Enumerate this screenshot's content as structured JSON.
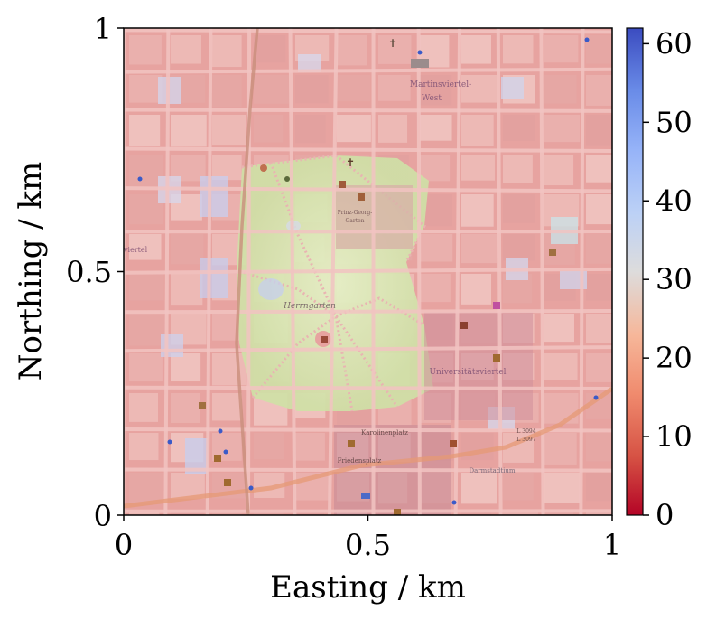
{
  "map": {
    "labels": {
      "district_north": "Martinsviertel-West",
      "district_north_line1": "Martinsviertel-",
      "district_north_line2": "West",
      "park": "Herrngarten",
      "garden_line1": "Prinz-Georg-",
      "garden_line2": "Garten",
      "district_university": "Universitätsviertel",
      "square_karolinen": "Karolinenplatz",
      "square_friedens": "Friedensplatz",
      "road_ref_1": "L 3094",
      "road_ref_2": "L 3097",
      "district_west": "viertel",
      "darmstadtium": "Darmstadtium"
    }
  },
  "axes": {
    "xlabel": "Easting / km",
    "ylabel": "Northing / km",
    "xticks": [
      "0",
      "0.5",
      "1"
    ],
    "yticks": [
      "0",
      "0.5",
      "1"
    ],
    "xlim": [
      0,
      1
    ],
    "ylim": [
      0,
      1
    ]
  },
  "colorbar": {
    "colormap": "coolwarm_r",
    "range": [
      0,
      62
    ],
    "ticks": [
      "0",
      "10",
      "20",
      "30",
      "40",
      "50",
      "60"
    ],
    "tick_values": [
      0,
      10,
      20,
      30,
      40,
      50,
      60
    ]
  },
  "colors": {
    "low": "#b40426",
    "mid": "#dddcdc",
    "high": "#3b4cc0",
    "street": "#f3b8b6",
    "park": "#c9d9a0",
    "overlay_warm": "#e7a3a0"
  }
}
